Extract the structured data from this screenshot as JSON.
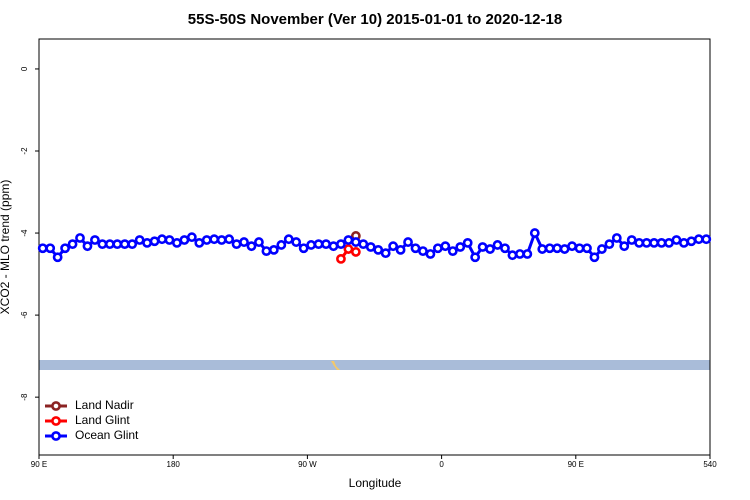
{
  "chart_data": {
    "type": "line",
    "title": "55S-50S November (Ver 10)   2015-01-01 to 2020-12-18",
    "x_label": "Longitude",
    "y_label": "XCO2 - MLO trend (ppm)",
    "xlim": [
      90,
      540
    ],
    "ylim": [
      -9.41,
      0.73
    ],
    "xticks": [
      {
        "value": 90,
        "label": "90 E"
      },
      180,
      {
        "value": 270,
        "label": "90 W"
      },
      {
        "value": 360,
        "label": "0"
      },
      {
        "value": 450,
        "label": "90 E"
      },
      540
    ],
    "yticks": [
      0,
      -2,
      -4,
      -6,
      -8
    ],
    "legend": "bottom-left",
    "series": [
      {
        "name": "Land Nadir",
        "color": "#8b2323",
        "x": [
          302.5
        ],
        "values": [
          -4.07
        ]
      },
      {
        "name": "Land Glint",
        "color": "#ff0000",
        "x": [
          292.5,
          297.5,
          302.5
        ],
        "values": [
          -4.63,
          -4.39,
          -4.46
        ]
      },
      {
        "name": "Ocean Glint",
        "color": "#0000ff",
        "x": [
          92.5,
          97.5,
          102.5,
          107.5,
          112.5,
          117.5,
          122.5,
          127.5,
          132.5,
          137.5,
          142.5,
          147.5,
          152.5,
          157.5,
          162.5,
          167.5,
          172.5,
          177.5,
          182.5,
          187.5,
          192.5,
          197.5,
          202.5,
          207.5,
          212.5,
          217.5,
          222.5,
          227.5,
          232.5,
          237.5,
          242.5,
          247.5,
          252.5,
          257.5,
          262.5,
          267.5,
          272.5,
          277.5,
          282.5,
          287.5,
          292.5,
          297.5,
          302.5,
          307.5,
          312.5,
          317.5,
          322.5,
          327.5,
          332.5,
          337.5,
          342.5,
          347.5,
          352.5,
          357.5,
          362.5,
          367.5,
          372.5,
          377.5,
          382.5,
          387.5,
          392.5,
          397.5,
          402.5,
          407.5,
          412.5,
          417.5,
          422.5,
          427.5,
          432.5,
          437.5,
          442.5,
          447.5,
          452.5,
          457.5,
          462.5,
          467.5,
          472.5,
          477.5,
          482.5,
          487.5,
          492.5,
          497.5,
          502.5,
          507.5,
          512.5,
          517.5,
          522.5,
          527.5,
          532.5,
          537.5
        ],
        "values": [
          -4.37,
          -4.37,
          -4.59,
          -4.37,
          -4.27,
          -4.12,
          -4.32,
          -4.17,
          -4.27,
          -4.27,
          -4.27,
          -4.27,
          -4.27,
          -4.17,
          -4.24,
          -4.2,
          -4.15,
          -4.17,
          -4.24,
          -4.17,
          -4.1,
          -4.24,
          -4.17,
          -4.15,
          -4.17,
          -4.15,
          -4.27,
          -4.22,
          -4.32,
          -4.22,
          -4.44,
          -4.41,
          -4.29,
          -4.15,
          -4.22,
          -4.37,
          -4.29,
          -4.27,
          -4.27,
          -4.32,
          -4.27,
          -4.17,
          -4.22,
          -4.27,
          -4.34,
          -4.41,
          -4.49,
          -4.32,
          -4.41,
          -4.22,
          -4.37,
          -4.44,
          -4.51,
          -4.37,
          -4.32,
          -4.44,
          -4.34,
          -4.24,
          -4.59,
          -4.34,
          -4.39,
          -4.29,
          -4.37,
          -4.54,
          -4.51,
          -4.51,
          -4,
          -4.39,
          -4.37,
          -4.37,
          -4.39,
          -4.32,
          -4.37,
          -4.37,
          -4.59,
          -4.39,
          -4.27,
          -4.12,
          -4.32,
          -4.17,
          -4.24,
          -4.24,
          -4.24,
          -4.24,
          -4.24,
          -4.17,
          -4.24,
          -4.2,
          -4.15,
          -4.15
        ]
      }
    ]
  }
}
